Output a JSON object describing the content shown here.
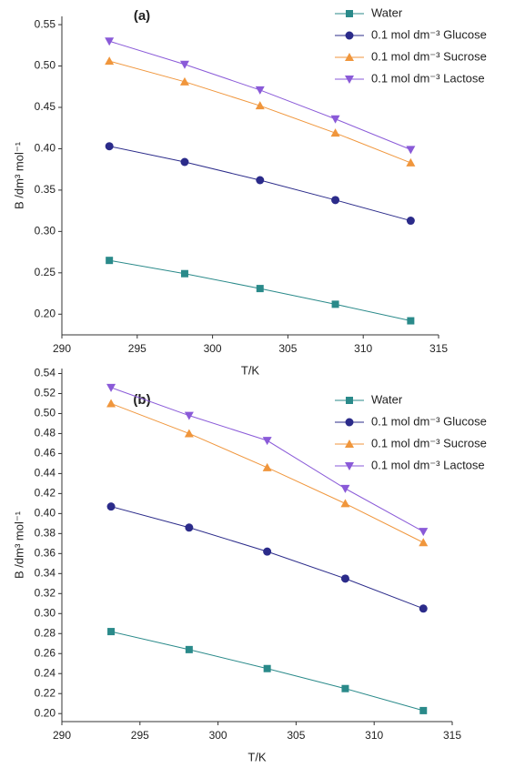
{
  "chart_data": [
    {
      "type": "line",
      "title": "(a)",
      "x_label": "T/K",
      "y_label": "B /dm³ mol⁻¹",
      "x": [
        293.15,
        298.15,
        303.15,
        308.15,
        313.15
      ],
      "xlim": [
        290,
        315
      ],
      "xticks": [
        290,
        295,
        300,
        305,
        310,
        315
      ],
      "ylim": [
        0.175,
        0.56
      ],
      "yticks": [
        {
          "value": 0.2,
          "label": "0.20"
        },
        0.25,
        {
          "value": 0.3,
          "label": "0.30"
        },
        0.35,
        {
          "value": 0.4,
          "label": "0.40"
        },
        0.45,
        {
          "value": 0.5,
          "label": "0.50"
        },
        0.55
      ],
      "legend": "upper right",
      "series": [
        {
          "name": "Water",
          "color": "#2a8a8a",
          "marker": "square",
          "values": [
            0.265,
            0.249,
            0.231,
            0.212,
            0.192
          ]
        },
        {
          "name": "0.1 mol dm⁻³ Glucose",
          "color": "#2b2b8a",
          "marker": "circle",
          "values": [
            0.403,
            0.384,
            0.362,
            0.338,
            0.313
          ]
        },
        {
          "name": "0.1 mol dm⁻³ Sucrose",
          "color": "#f0963c",
          "marker": "triangle-up",
          "values": [
            0.506,
            0.481,
            0.452,
            0.419,
            0.383
          ]
        },
        {
          "name": "0.1 mol dm⁻³ Lactose",
          "color": "#8a5ad8",
          "marker": "triangle-down",
          "values": [
            0.53,
            0.502,
            0.471,
            0.436,
            0.399
          ]
        }
      ]
    },
    {
      "type": "line",
      "title": "(b)",
      "x_label": "T/K",
      "y_label": "B /dm³ mol⁻¹",
      "x": [
        293.15,
        298.15,
        303.15,
        308.15,
        313.15
      ],
      "xlim": [
        290,
        315
      ],
      "xticks": [
        290,
        295,
        300,
        305,
        310,
        315
      ],
      "ylim": [
        0.192,
        0.545
      ],
      "yticks": [
        {
          "value": 0.2,
          "label": "0.20"
        },
        0.22,
        0.24,
        0.26,
        0.28,
        {
          "value": 0.3,
          "label": "0.30"
        },
        0.32,
        0.34,
        0.36,
        0.38,
        {
          "value": 0.4,
          "label": "0.40"
        },
        0.42,
        0.44,
        0.46,
        0.48,
        {
          "value": 0.5,
          "label": "0.50"
        },
        0.52,
        0.54
      ],
      "legend": "upper right",
      "series": [
        {
          "name": "Water",
          "color": "#2a8a8a",
          "marker": "square",
          "values": [
            0.282,
            0.264,
            0.245,
            0.225,
            0.203
          ]
        },
        {
          "name": "0.1 mol dm⁻³ Glucose",
          "color": "#2b2b8a",
          "marker": "circle",
          "values": [
            0.407,
            0.386,
            0.362,
            0.335,
            0.305
          ]
        },
        {
          "name": "0.1 mol dm⁻³ Sucrose",
          "color": "#f0963c",
          "marker": "triangle-up",
          "values": [
            0.51,
            0.48,
            0.446,
            0.41,
            0.371
          ]
        },
        {
          "name": "0.1 mol dm⁻³ Lactose",
          "color": "#8a5ad8",
          "marker": "triangle-down",
          "values": [
            0.526,
            0.498,
            0.473,
            0.425,
            0.382
          ]
        }
      ]
    }
  ]
}
